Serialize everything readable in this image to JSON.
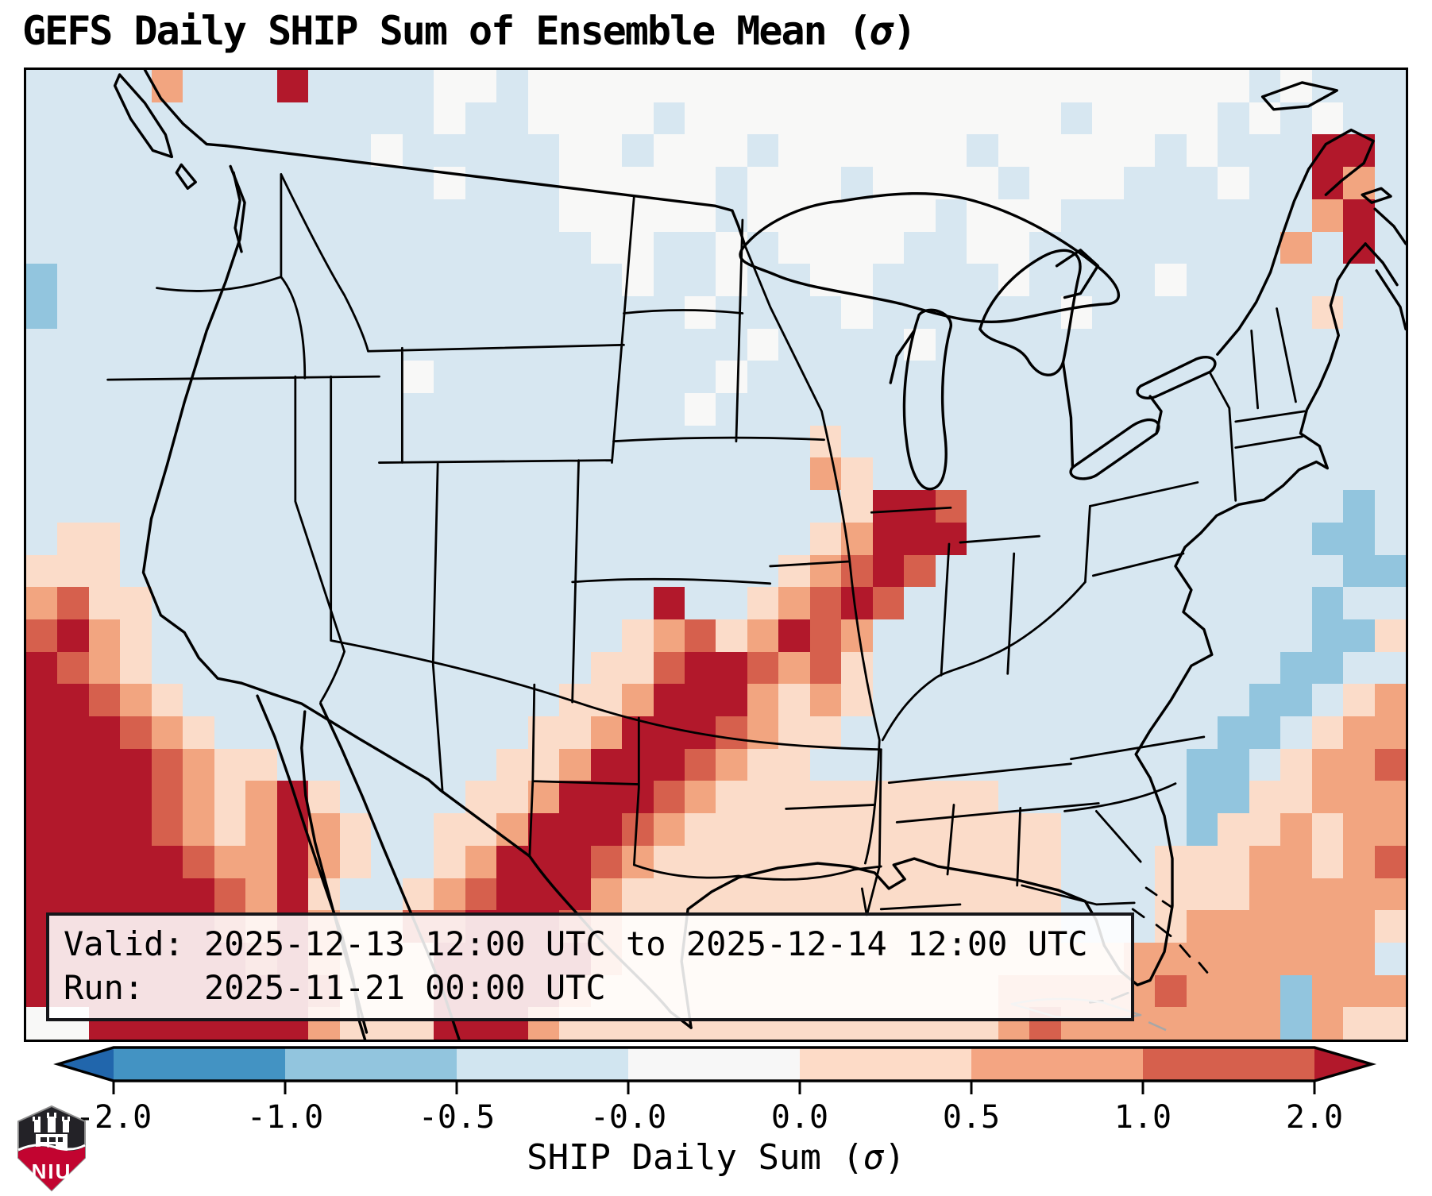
{
  "title": {
    "text": "GEFS Daily SHIP Sum of Ensemble Mean (",
    "sigma": "σ",
    "close": ")"
  },
  "info_box": {
    "rows": [
      {
        "label": "Valid:",
        "value": "2025-12-13 12:00 UTC to 2025-12-14 12:00 UTC"
      },
      {
        "label": "Run:",
        "value": "2025-11-21 00:00 UTC"
      }
    ]
  },
  "colorbar": {
    "label_prefix": "SHIP Daily Sum (",
    "label_sigma": "σ",
    "label_close": ")",
    "ticks": [
      "-2.0",
      "-1.0",
      "-0.5",
      "-0.0",
      "0.0",
      "0.5",
      "1.0",
      "2.0"
    ],
    "segment_colors": [
      "#4393c3",
      "#92c5de",
      "#d1e5f0",
      "#f7f7f7",
      "#fddbc7",
      "#f4a582",
      "#d6604d"
    ],
    "under_color": "#2166ac",
    "over_color": "#b2182b"
  },
  "logo": {
    "text": "NIU",
    "shield_color": "#232227",
    "band_color": "#c20430"
  },
  "chart_data": {
    "type": "heatmap",
    "title": "GEFS Daily SHIP Sum of Ensemble Mean (σ)",
    "colorbar_label": "SHIP Daily Sum (σ)",
    "colorbar_ticks": [
      -2.0,
      -1.0,
      -0.5,
      -0.0,
      0.0,
      0.5,
      1.0,
      2.0
    ],
    "valid": "2025-12-13 12:00 UTC to 2025-12-14 12:00 UTC",
    "run": "2025-11-21 00:00 UTC",
    "palette": {
      ".": "#d7e7f1",
      "w": "#f8f8f7",
      "p": "#fbdcc9",
      "s": "#f2a580",
      "r": "#d6604d",
      "R": "#b2182b",
      "b": "#92c5de",
      "B": "#4393c3"
    },
    "raster_rows": [
      "....s...R....ww.wwwwwwwwwwwwwwwwwwwwwww.w...",
      ".............w..wwww.wwwwwwwwwwww.wwww.w.w..",
      "...........w.....ww.www.wwwwww.wwwww.w...RR.",
      ".............w...wwwww.www.wwww.www...w..Rs.",
      ".................wwwww.wwwwww.www........sR.",
      "..................ww..w.wwww..ww........s.R.",
      "b..................w..w..ww....w....w.......",
      "b....................w....w......w.......p..",
      ".......................w....w...............",
      "............w.........w.....................",
      ".....................w......................",
      ".........................p..................",
      ".........................sp.................",
      "..........................pRRr............b.",
      ".pp......................psRRR...........bb.",
      "ppp.....................psrRr.............bb",
      "srpp................R..psrRr.............b..",
      "rRsp...............psrpsRrs..............bbp",
      "Rrsp..............pprRRrsrp.............bb..",
      "RRrsp............ppsRRRspsp............bb.ps",
      "RRRrsp..........ppsRRRrspp............bb.pss",
      "RRRRrspp.......ppsRRRrspp............bb.pssr",
      "RRRRrspsRp....ppsRRRrsppppppppp......bbppsss",
      "RRRRrspsRsp..ppsRRRrspppppppppppp....bppspss",
      "RRRRRrssRsp..psRRRrsppppppppppppp...pppsspsr",
      "RRRRRRrsRp..psrRRRspppppppppppppp...pppsssss",
      "RRRRRRrsRspprrRRRrspppppppppppppp...pssssssp",
      "RRRRRRRrRspppRRRRRsppppppppppppppppssssssss",
      "RRRRRRRRRrpppRRRRspppppppppppppsssssrsssbsss",
      "wwRRRRRRRspppRRRsppppppppppppppsrsssssssbspp"
    ]
  }
}
